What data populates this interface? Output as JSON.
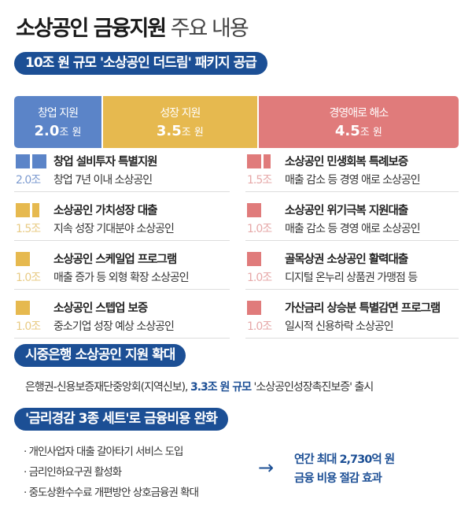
{
  "title": {
    "bold": "소상공인 금융지원",
    "light": "주요 내용"
  },
  "section1": {
    "label": "10조 원 규모 '소상공인 더드림' 패키지 공급"
  },
  "colors": {
    "blue": "#5b84c8",
    "yellow": "#e6b94f",
    "red": "#e07b7b",
    "navy": "#1c4f95"
  },
  "bar": [
    {
      "name": "창업 지원",
      "value": "2.0",
      "unit": "조 원",
      "amount": 2.0,
      "color": "#5b84c8"
    },
    {
      "name": "성장 지원",
      "value": "3.5",
      "unit": "조 원",
      "amount": 3.5,
      "color": "#e6b94f"
    },
    {
      "name": "경영애로 해소",
      "value": "4.5",
      "unit": "조 원",
      "amount": 4.5,
      "color": "#e07b7b"
    }
  ],
  "items_left": [
    {
      "title": "창업 설비투자 특별지원",
      "amount": "2.0조",
      "desc": "창업 7년 이내 소상공인",
      "squares": 2.0,
      "color": "#5b84c8",
      "amt_color": "#7d9bd0"
    },
    {
      "title": "소상공인 가치성장 대출",
      "amount": "1.5조",
      "desc": "지속 성장 기대분야 소상공인",
      "squares": 1.5,
      "color": "#e6b94f",
      "amt_color": "#e8cb85"
    },
    {
      "title": "소상공인 스케일업 프로그램",
      "amount": "1.0조",
      "desc": "매출 증가 등 외형 확장 소상공인",
      "squares": 1.0,
      "color": "#e6b94f",
      "amt_color": "#e8cb85"
    },
    {
      "title": "소상공인 스텝업 보증",
      "amount": "1.0조",
      "desc": "중소기업 성장 예상 소상공인",
      "squares": 1.0,
      "color": "#e6b94f",
      "amt_color": "#e8cb85"
    }
  ],
  "items_right": [
    {
      "title": "소상공인 민생회복 특례보증",
      "amount": "1.5조",
      "desc": "매출 감소 등 경영 애로 소상공인",
      "squares": 1.5,
      "color": "#e07b7b",
      "amt_color": "#e6a8a8"
    },
    {
      "title": "소상공인 위기극복 지원대출",
      "amount": "1.0조",
      "desc": "매출 감소 등 경영 애로 소상공인",
      "squares": 1.0,
      "color": "#e07b7b",
      "amt_color": "#e6a8a8"
    },
    {
      "title": "골목상권 소상공인 활력대출",
      "amount": "1.0조",
      "desc": "디지털 온누리 상품권 가맹점 등",
      "squares": 1.0,
      "color": "#e07b7b",
      "amt_color": "#e6a8a8"
    },
    {
      "title": "가산금리 상승분 특별감면 프로그램",
      "amount": "1.0조",
      "desc": "일시적 신용하락 소상공인",
      "squares": 1.0,
      "color": "#e07b7b",
      "amt_color": "#e6a8a8"
    }
  ],
  "section2": {
    "label": "시중은행 소상공인 지원 확대",
    "text_pre": "은행권-신용보증재단중앙회(지역신보), ",
    "text_hl": "3.3조 원 규모",
    "text_post": " '소상공인성장촉진보증' 출시"
  },
  "section3": {
    "label": "'금리경감 3종 세트'로 금융비용 완화",
    "bullets": [
      "개인사업자 대출 갈아타기 서비스 도입",
      "금리인하요구권 활성화",
      "중도상환수수료 개편방안 상호금융권 확대"
    ],
    "arrow": "→",
    "result": [
      "연간 최대 2,730억 원",
      "금융 비용 절감 효과"
    ]
  }
}
